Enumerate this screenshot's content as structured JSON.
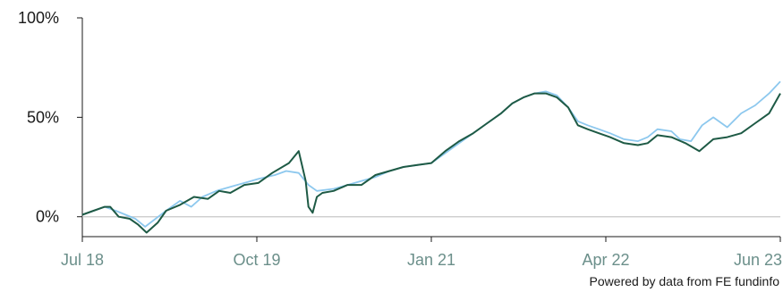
{
  "chart_data": {
    "type": "line",
    "ylim": [
      -10,
      100
    ],
    "yticks": [
      {
        "value": 100,
        "label": "100%"
      },
      {
        "value": 50,
        "label": "50%"
      },
      {
        "value": 0,
        "label": "0%"
      }
    ],
    "xlim": [
      2018.5,
      2023.5
    ],
    "xticks": [
      {
        "value": 2018.5,
        "label": "Jul 18"
      },
      {
        "value": 2019.75,
        "label": "Oct 19"
      },
      {
        "value": 2021.0,
        "label": "Jan 21"
      },
      {
        "value": 2022.25,
        "label": "Apr 22"
      },
      {
        "value": 2023.5,
        "label": "Jun 23"
      }
    ],
    "grid": false,
    "baseline": 0,
    "colors": {
      "series_1": "#1e5a45",
      "series_2": "#8dc8ee",
      "baseline": "#c8c8c8",
      "axis": "#1a1a1a",
      "xtick_text": "#6b8f8a"
    },
    "series": [
      {
        "key": "series_1",
        "x": [
          2018.5,
          2018.58,
          2018.66,
          2018.7,
          2018.76,
          2018.84,
          2018.9,
          2018.96,
          2019.04,
          2019.1,
          2019.2,
          2019.3,
          2019.4,
          2019.48,
          2019.56,
          2019.66,
          2019.76,
          2019.86,
          2019.98,
          2020.05,
          2020.1,
          2020.12,
          2020.15,
          2020.18,
          2020.22,
          2020.3,
          2020.4,
          2020.5,
          2020.6,
          2020.7,
          2020.8,
          2020.9,
          2021.0,
          2021.1,
          2021.2,
          2021.3,
          2021.4,
          2021.5,
          2021.58,
          2021.66,
          2021.74,
          2021.82,
          2021.9,
          2021.98,
          2022.05,
          2022.12,
          2022.2,
          2022.28,
          2022.38,
          2022.48,
          2022.55,
          2022.62,
          2022.72,
          2022.82,
          2022.92,
          2023.02,
          2023.12,
          2023.22,
          2023.32,
          2023.42,
          2023.5
        ],
        "y": [
          1,
          3,
          5,
          5,
          0,
          -1,
          -4,
          -8,
          -3,
          3,
          6,
          10,
          9,
          13,
          12,
          16,
          17,
          22,
          27,
          33,
          18,
          5,
          2,
          10,
          12,
          13,
          16,
          16,
          21,
          23,
          25,
          26,
          27,
          33,
          38,
          42,
          47,
          52,
          57,
          60,
          62,
          62,
          60,
          55,
          46,
          44,
          42,
          40,
          37,
          36,
          37,
          41,
          40,
          37,
          33,
          39,
          40,
          42,
          47,
          52,
          62
        ]
      },
      {
        "key": "series_2",
        "x": [
          2018.5,
          2018.66,
          2018.74,
          2018.88,
          2018.95,
          2019.1,
          2019.2,
          2019.28,
          2019.36,
          2019.46,
          2019.56,
          2019.66,
          2019.76,
          2019.88,
          2019.96,
          2020.05,
          2020.12,
          2020.18,
          2020.3,
          2020.4,
          2020.5,
          2020.6,
          2020.7,
          2020.8,
          2020.9,
          2021.0,
          2021.1,
          2021.2,
          2021.3,
          2021.4,
          2021.5,
          2021.58,
          2021.66,
          2021.74,
          2021.82,
          2021.9,
          2021.98,
          2022.05,
          2022.12,
          2022.2,
          2022.28,
          2022.38,
          2022.48,
          2022.55,
          2022.62,
          2022.72,
          2022.78,
          2022.86,
          2022.94,
          2023.02,
          2023.12,
          2023.22,
          2023.32,
          2023.42,
          2023.5
        ],
        "y": [
          1,
          5,
          3,
          -1,
          -5,
          3,
          8,
          5,
          10,
          13,
          15,
          17,
          19,
          21,
          23,
          22,
          16,
          13,
          14,
          16,
          18,
          20,
          23,
          25,
          26,
          27,
          32,
          37,
          42,
          47,
          52,
          57,
          60,
          62,
          63,
          61,
          55,
          48,
          46,
          44,
          42,
          39,
          38,
          40,
          44,
          43,
          39,
          38,
          46,
          50,
          45,
          52,
          56,
          62,
          68
        ]
      }
    ],
    "credit": "Powered by data from FE fundinfo"
  }
}
